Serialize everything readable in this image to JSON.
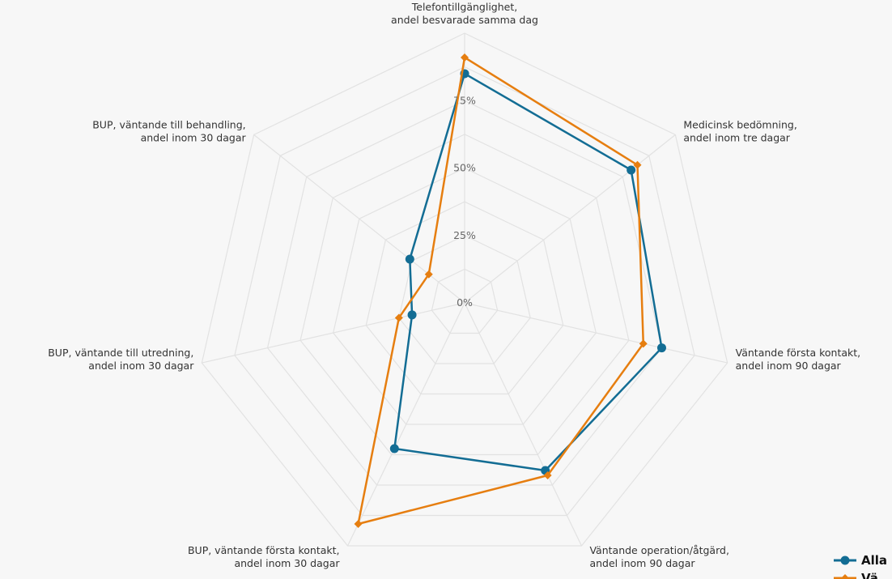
{
  "colors": {
    "background": "#f7f7f7",
    "grid": "#e2e2e2",
    "series_blue": "#136d94",
    "series_orange": "#e67e10"
  },
  "chart_data": {
    "type": "radar",
    "axes": [
      [
        "Telefontillgänglighet,",
        "andel besvarade samma dag"
      ],
      [
        "Medicinsk bedömning,",
        "andel inom tre dagar"
      ],
      [
        "Väntande första kontakt,",
        "andel inom 90 dagar"
      ],
      [
        "Väntande operation/åtgärd,",
        "andel inom 90 dagar"
      ],
      [
        "BUP, väntande första kontakt,",
        "andel inom 30 dagar"
      ],
      [
        "BUP, väntande till utredning,",
        "andel inom 30 dagar"
      ],
      [
        "BUP, väntande till behandling,",
        "andel inom 30 dagar"
      ]
    ],
    "ticks": [
      "0%",
      "25%",
      "50%",
      "75%"
    ],
    "rlim": [
      0,
      100
    ],
    "grid": true,
    "legend_position": "bottom-right",
    "series": [
      {
        "name": "Alla",
        "marker": "circle",
        "color": "#136d94",
        "values": [
          85,
          79,
          75,
          69,
          60,
          20,
          26
        ]
      },
      {
        "name": "Vä",
        "marker": "diamond",
        "color": "#e67e10",
        "values": [
          91,
          82,
          68,
          71,
          91,
          25,
          17
        ]
      }
    ]
  }
}
